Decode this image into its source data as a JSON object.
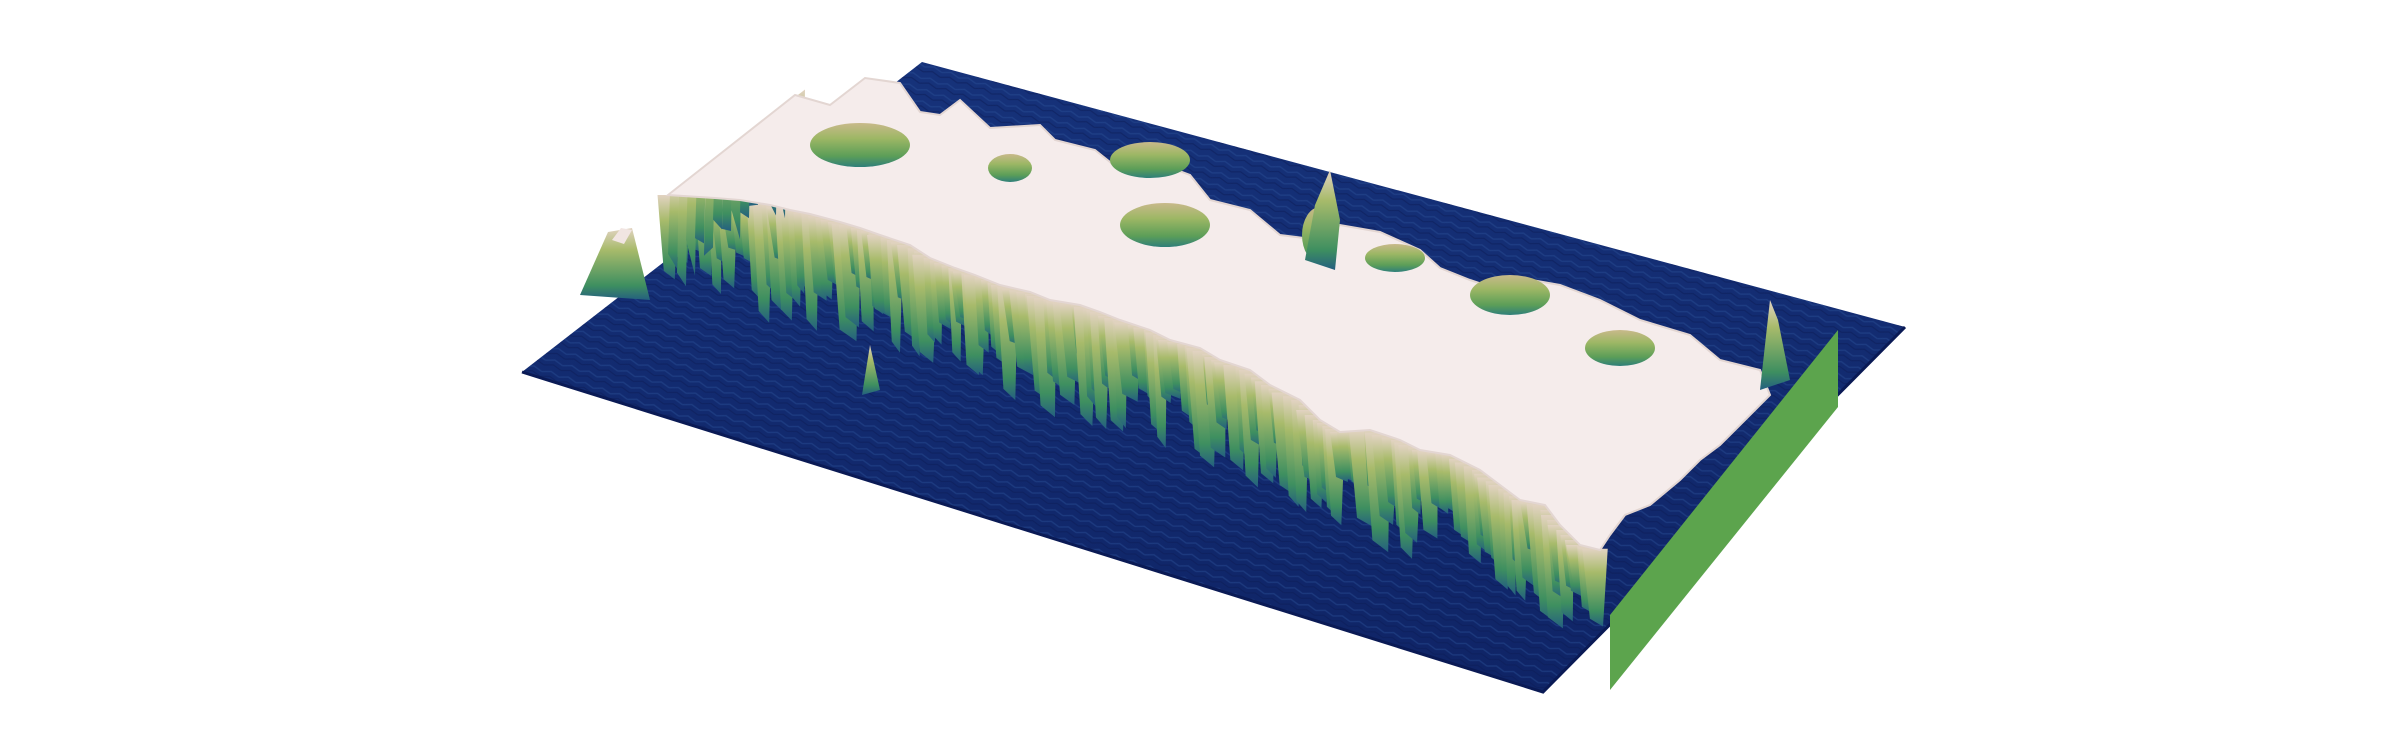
{
  "scene": {
    "subject": "terrain-surface-3d",
    "colors": {
      "background": "#ffffff",
      "deep_water": "#0d1f63",
      "water": "#1f3f8a",
      "shallow": "#2e7a8c",
      "low_green": "#4f9e4f",
      "mid_green": "#8bb360",
      "tan": "#c9b98a",
      "plateau": "#f5eceb",
      "side_face": "#5ca44d"
    }
  }
}
